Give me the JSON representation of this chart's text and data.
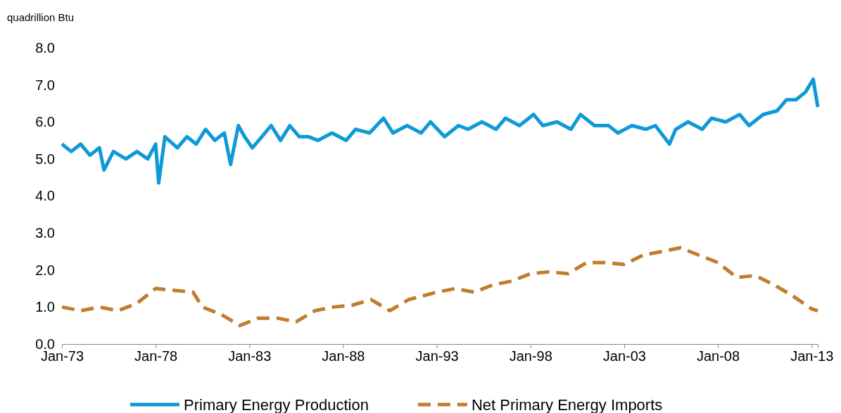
{
  "chart_data": {
    "type": "line",
    "ylabel": "quadrillion Btu",
    "xlim": [
      "1973-01",
      "2013-05"
    ],
    "ylim": [
      0,
      8
    ],
    "xticks": [
      {
        "value": "1973-01",
        "label": "Jan-73"
      },
      {
        "value": "1978-01",
        "label": "Jan-78"
      },
      {
        "value": "1983-01",
        "label": "Jan-83"
      },
      {
        "value": "1988-01",
        "label": "Jan-88"
      },
      {
        "value": "1993-01",
        "label": "Jan-93"
      },
      {
        "value": "1998-01",
        "label": "Jan-98"
      },
      {
        "value": "2003-01",
        "label": "Jan-03"
      },
      {
        "value": "2008-01",
        "label": "Jan-08"
      },
      {
        "value": "2013-01",
        "label": "Jan-13"
      }
    ],
    "yticks": [
      {
        "value": 0,
        "label": "0.0"
      },
      {
        "value": 1,
        "label": "1.0"
      },
      {
        "value": 2,
        "label": "2.0"
      },
      {
        "value": 3,
        "label": "3.0"
      },
      {
        "value": 4,
        "label": "4.0"
      },
      {
        "value": 5,
        "label": "5.0"
      },
      {
        "value": 6,
        "label": "6.0"
      },
      {
        "value": 7,
        "label": "7.0"
      },
      {
        "value": 8,
        "label": "8.0"
      }
    ],
    "grid": false,
    "legend": "bottom",
    "marker": "none",
    "series": [
      {
        "name": "Primary Energy Production",
        "color": "#0e9ad7",
        "line_style": "solid",
        "x": [
          "1973-01",
          "1973-07",
          "1974-01",
          "1974-07",
          "1975-01",
          "1975-04",
          "1975-10",
          "1976-06",
          "1977-01",
          "1977-08",
          "1978-01",
          "1978-03",
          "1978-07",
          "1979-03",
          "1979-09",
          "1980-03",
          "1980-09",
          "1981-03",
          "1981-09",
          "1982-01",
          "1982-06",
          "1982-10",
          "1983-03",
          "1983-09",
          "1984-03",
          "1984-09",
          "1985-03",
          "1985-09",
          "1986-03",
          "1986-09",
          "1987-06",
          "1988-03",
          "1988-09",
          "1989-06",
          "1990-03",
          "1990-09",
          "1991-06",
          "1992-03",
          "1992-09",
          "1993-06",
          "1994-03",
          "1994-09",
          "1995-06",
          "1996-03",
          "1996-09",
          "1997-06",
          "1998-03",
          "1998-09",
          "1999-06",
          "2000-03",
          "2000-09",
          "2001-06",
          "2002-03",
          "2002-09",
          "2003-06",
          "2004-03",
          "2004-09",
          "2005-06",
          "2005-10",
          "2006-06",
          "2007-03",
          "2007-09",
          "2008-06",
          "2009-03",
          "2009-09",
          "2010-06",
          "2011-03",
          "2011-09",
          "2012-03",
          "2012-09",
          "2013-02",
          "2013-05"
        ],
        "values": [
          5.4,
          5.2,
          5.4,
          5.1,
          5.3,
          4.7,
          5.2,
          5.0,
          5.2,
          5.0,
          5.4,
          4.35,
          5.6,
          5.3,
          5.6,
          5.4,
          5.8,
          5.5,
          5.7,
          4.85,
          5.9,
          5.6,
          5.3,
          5.6,
          5.9,
          5.5,
          5.9,
          5.6,
          5.6,
          5.5,
          5.7,
          5.5,
          5.8,
          5.7,
          6.1,
          5.7,
          5.9,
          5.7,
          6.0,
          5.6,
          5.9,
          5.8,
          6.0,
          5.8,
          6.1,
          5.9,
          6.2,
          5.9,
          6.0,
          5.8,
          6.2,
          5.9,
          5.9,
          5.7,
          5.9,
          5.8,
          5.9,
          5.4,
          5.8,
          6.0,
          5.8,
          6.1,
          6.0,
          6.2,
          5.9,
          6.2,
          6.3,
          6.6,
          6.6,
          6.8,
          7.15,
          6.4
        ]
      },
      {
        "name": "Net Primary Energy Imports",
        "color": "#c27c2e",
        "line_style": "dashed",
        "x": [
          "1973-01",
          "1974-01",
          "1975-01",
          "1976-01",
          "1977-01",
          "1978-01",
          "1979-01",
          "1980-01",
          "1980-07",
          "1981-07",
          "1982-07",
          "1983-07",
          "1984-07",
          "1985-07",
          "1986-07",
          "1987-07",
          "1988-07",
          "1989-07",
          "1990-07",
          "1991-07",
          "1993-01",
          "1994-01",
          "1995-01",
          "1996-01",
          "1997-01",
          "1998-01",
          "1999-01",
          "2000-01",
          "2001-01",
          "2002-01",
          "2003-01",
          "2004-01",
          "2005-01",
          "2006-01",
          "2007-01",
          "2008-01",
          "2009-01",
          "2010-01",
          "2011-01",
          "2012-01",
          "2013-01",
          "2013-05"
        ],
        "values": [
          1.0,
          0.9,
          1.0,
          0.9,
          1.1,
          1.5,
          1.45,
          1.4,
          1.0,
          0.8,
          0.5,
          0.7,
          0.7,
          0.6,
          0.9,
          1.0,
          1.05,
          1.2,
          0.9,
          1.2,
          1.4,
          1.5,
          1.4,
          1.6,
          1.7,
          1.9,
          1.95,
          1.9,
          2.2,
          2.2,
          2.15,
          2.4,
          2.5,
          2.6,
          2.4,
          2.2,
          1.8,
          1.85,
          1.6,
          1.3,
          0.95,
          0.9
        ]
      }
    ]
  }
}
